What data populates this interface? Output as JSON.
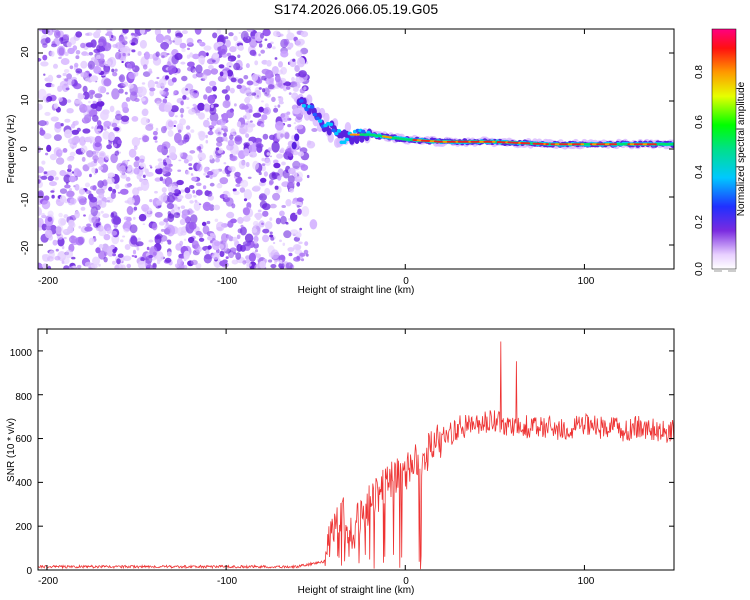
{
  "title": "S174.2026.066.05.19.G05",
  "chart_data": [
    {
      "type": "heatmap",
      "xlabel": "Height of straight line (km)",
      "ylabel": "Frequency (Hz)",
      "xlim": [
        -205,
        150
      ],
      "ylim": [
        -25,
        25
      ],
      "xticks": [
        -200,
        -100,
        0,
        100
      ],
      "yticks": [
        -20,
        -10,
        0,
        10,
        20
      ],
      "colorbar": {
        "label": "Normalized spectral amplitude",
        "range": [
          0.0,
          1.0
        ],
        "ticks": [
          0.0,
          0.2,
          0.4,
          0.6,
          0.8
        ]
      },
      "noise_region_x": [
        -205,
        -55
      ],
      "ridge": [
        {
          "x": -60,
          "f": 11
        },
        {
          "x": -55,
          "f": 9
        },
        {
          "x": -50,
          "f": 7
        },
        {
          "x": -45,
          "f": 5
        },
        {
          "x": -40,
          "f": 4
        },
        {
          "x": -35,
          "f": 2
        },
        {
          "x": -30,
          "f": 3
        },
        {
          "x": -20,
          "f": 3
        },
        {
          "x": -10,
          "f": 2.5
        },
        {
          "x": 0,
          "f": 2
        },
        {
          "x": 20,
          "f": 1.5
        },
        {
          "x": 50,
          "f": 1.5
        },
        {
          "x": 80,
          "f": 1
        },
        {
          "x": 100,
          "f": 1
        },
        {
          "x": 120,
          "f": 1
        },
        {
          "x": 150,
          "f": 1
        }
      ]
    },
    {
      "type": "line",
      "xlabel": "Height of straight line (km)",
      "ylabel": "SNR (10 * v/v)",
      "xlim": [
        -205,
        150
      ],
      "ylim": [
        0,
        1100
      ],
      "xticks": [
        -200,
        -100,
        0,
        100
      ],
      "yticks": [
        0,
        200,
        400,
        600,
        800,
        1000
      ],
      "color": "#ee3333",
      "series": [
        {
          "name": "SNR",
          "x": [
            -205,
            -150,
            -100,
            -60,
            -45,
            -40,
            -35,
            -30,
            -25,
            -20,
            -15,
            -10,
            -5,
            0,
            5,
            10,
            15,
            20,
            25,
            30,
            40,
            50,
            60,
            70,
            80,
            90,
            100,
            110,
            120,
            130,
            140,
            150
          ],
          "values": [
            15,
            15,
            15,
            15,
            40,
            200,
            250,
            150,
            250,
            300,
            350,
            400,
            420,
            440,
            480,
            520,
            560,
            600,
            620,
            650,
            660,
            680,
            660,
            650,
            650,
            640,
            660,
            650,
            640,
            650,
            640,
            630
          ]
        }
      ]
    }
  ]
}
